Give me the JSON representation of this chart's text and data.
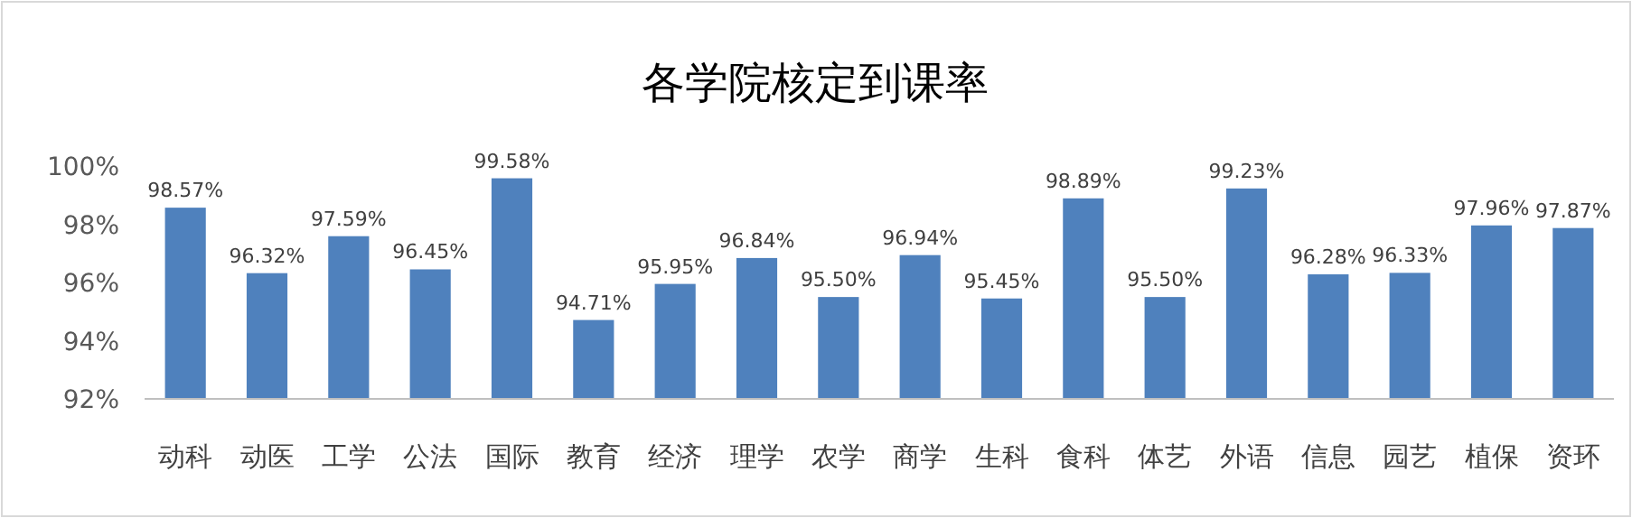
{
  "chart_data": {
    "type": "bar",
    "title": "各学院核定到课率",
    "categories": [
      "动科",
      "动医",
      "工学",
      "公法",
      "国际",
      "教育",
      "经济",
      "理学",
      "农学",
      "商学",
      "生科",
      "食科",
      "体艺",
      "外语",
      "信息",
      "园艺",
      "植保",
      "资环"
    ],
    "values": [
      98.57,
      96.32,
      97.59,
      96.45,
      99.58,
      94.71,
      95.95,
      96.84,
      95.5,
      96.94,
      95.45,
      98.89,
      95.5,
      99.23,
      96.28,
      96.33,
      97.96,
      97.87
    ],
    "value_labels": [
      "98.57%",
      "96.32%",
      "97.59%",
      "96.45%",
      "99.58%",
      "94.71%",
      "95.95%",
      "96.84%",
      "95.50%",
      "96.94%",
      "95.45%",
      "98.89%",
      "95.50%",
      "99.23%",
      "96.28%",
      "96.33%",
      "97.96%",
      "97.87%"
    ],
    "color": "#4f81bd",
    "ylim": [
      92,
      100
    ],
    "yticks": [
      {
        "value": 92,
        "label": "92%"
      },
      {
        "value": 94,
        "label": "94%"
      },
      {
        "value": 96,
        "label": "96%"
      },
      {
        "value": 98,
        "label": "98%"
      },
      {
        "value": 100,
        "label": "100%"
      }
    ],
    "grid": false
  }
}
